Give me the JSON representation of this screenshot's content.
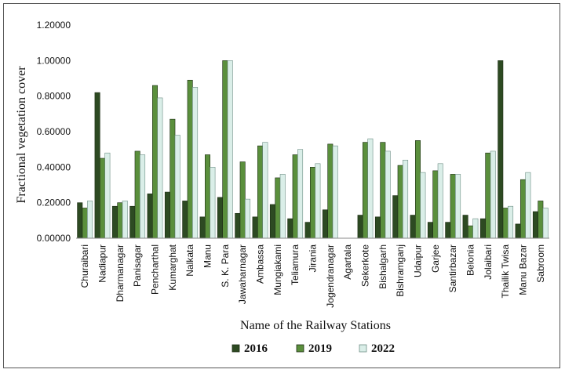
{
  "chart_data": {
    "type": "bar",
    "title": "",
    "xlabel": "Name of the Railway Stations",
    "ylabel": "Fractional vegetation cover",
    "ylim": [
      0,
      1.2
    ],
    "yticks": [
      "0.00000",
      "0.20000",
      "0.40000",
      "0.60000",
      "0.80000",
      "1.00000",
      "1.20000"
    ],
    "categories": [
      "Churaibari",
      "Nadiapur",
      "Dharmanagar",
      "Panisagar",
      "Pencharthal",
      "Kumarghat",
      "Nalkata",
      "Manu",
      "S. K. Para",
      "Jawaharnagar",
      "Ambassa",
      "Mungiakami",
      "Teliamura",
      "Jirania",
      "Jogendranagar",
      "Agartala",
      "Sekerkote",
      "Bishalgarh",
      "Bishramganj",
      "Udaipur",
      "Garjee",
      "Santirbazar",
      "Belonia",
      "Jolaibari",
      "Thailik Twisa",
      "Manu Bazar",
      "Sabroom"
    ],
    "series": [
      {
        "name": "2016",
        "color": "#2d4a22",
        "values": [
          0.2,
          0.82,
          0.18,
          0.18,
          0.25,
          0.26,
          0.21,
          0.12,
          0.23,
          0.14,
          0.12,
          0.19,
          0.11,
          0.09,
          0.16,
          0.0,
          0.13,
          0.12,
          0.24,
          0.13,
          0.09,
          0.09,
          0.13,
          0.11,
          1.0,
          0.08,
          0.15
        ]
      },
      {
        "name": "2019",
        "color": "#5a8f3c",
        "values": [
          0.17,
          0.45,
          0.2,
          0.49,
          0.86,
          0.67,
          0.89,
          0.47,
          1.0,
          0.43,
          0.52,
          0.34,
          0.47,
          0.4,
          0.53,
          0.0,
          0.54,
          0.54,
          0.41,
          0.55,
          0.38,
          0.36,
          0.07,
          0.48,
          0.17,
          0.33,
          0.21
        ]
      },
      {
        "name": "2022",
        "color": "#daeee8",
        "values": [
          0.21,
          0.48,
          0.21,
          0.47,
          0.79,
          0.58,
          0.85,
          0.4,
          1.0,
          0.22,
          0.54,
          0.36,
          0.5,
          0.42,
          0.52,
          0.0,
          0.56,
          0.49,
          0.44,
          0.37,
          0.42,
          0.36,
          0.11,
          0.49,
          0.18,
          0.37,
          0.17
        ]
      }
    ],
    "legend_position": "bottom-center",
    "grid": false
  }
}
